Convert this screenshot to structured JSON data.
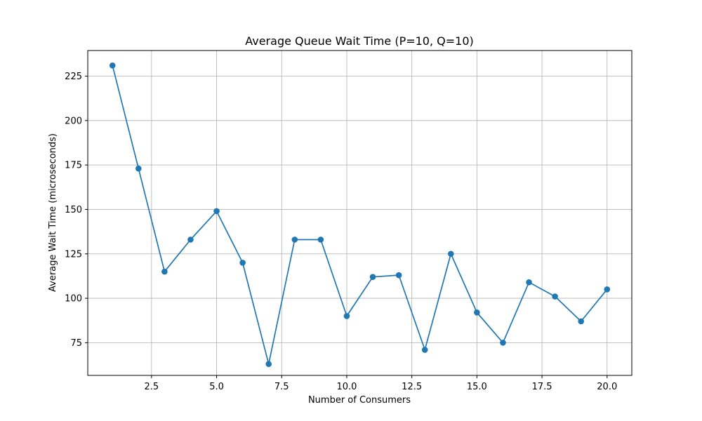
{
  "chart_data": {
    "type": "line",
    "title": "Average Queue Wait Time (P=10, Q=10)",
    "xlabel": "Number of Consumers",
    "ylabel": "Average Wait Time (microseconds)",
    "xlim": [
      0.05,
      20.95
    ],
    "ylim": [
      56.6,
      239.4
    ],
    "xticks": [
      2.5,
      5.0,
      7.5,
      10.0,
      12.5,
      15.0,
      17.5,
      20.0
    ],
    "xtick_labels": [
      "2.5",
      "5.0",
      "7.5",
      "10.0",
      "12.5",
      "15.0",
      "17.5",
      "20.0"
    ],
    "yticks": [
      75,
      100,
      125,
      150,
      175,
      200,
      225
    ],
    "ytick_labels": [
      "75",
      "100",
      "125",
      "150",
      "175",
      "200",
      "225"
    ],
    "grid": true,
    "series": [
      {
        "color": "#1f77b4",
        "marker": "circle",
        "x": [
          1,
          2,
          3,
          4,
          5,
          6,
          7,
          8,
          9,
          10,
          11,
          12,
          13,
          14,
          15,
          16,
          17,
          18,
          19,
          20
        ],
        "y": [
          231,
          173,
          115,
          133,
          149,
          120,
          63,
          133,
          133,
          90,
          112,
          113,
          71,
          125,
          92,
          75,
          109,
          101,
          87,
          105
        ]
      }
    ]
  }
}
